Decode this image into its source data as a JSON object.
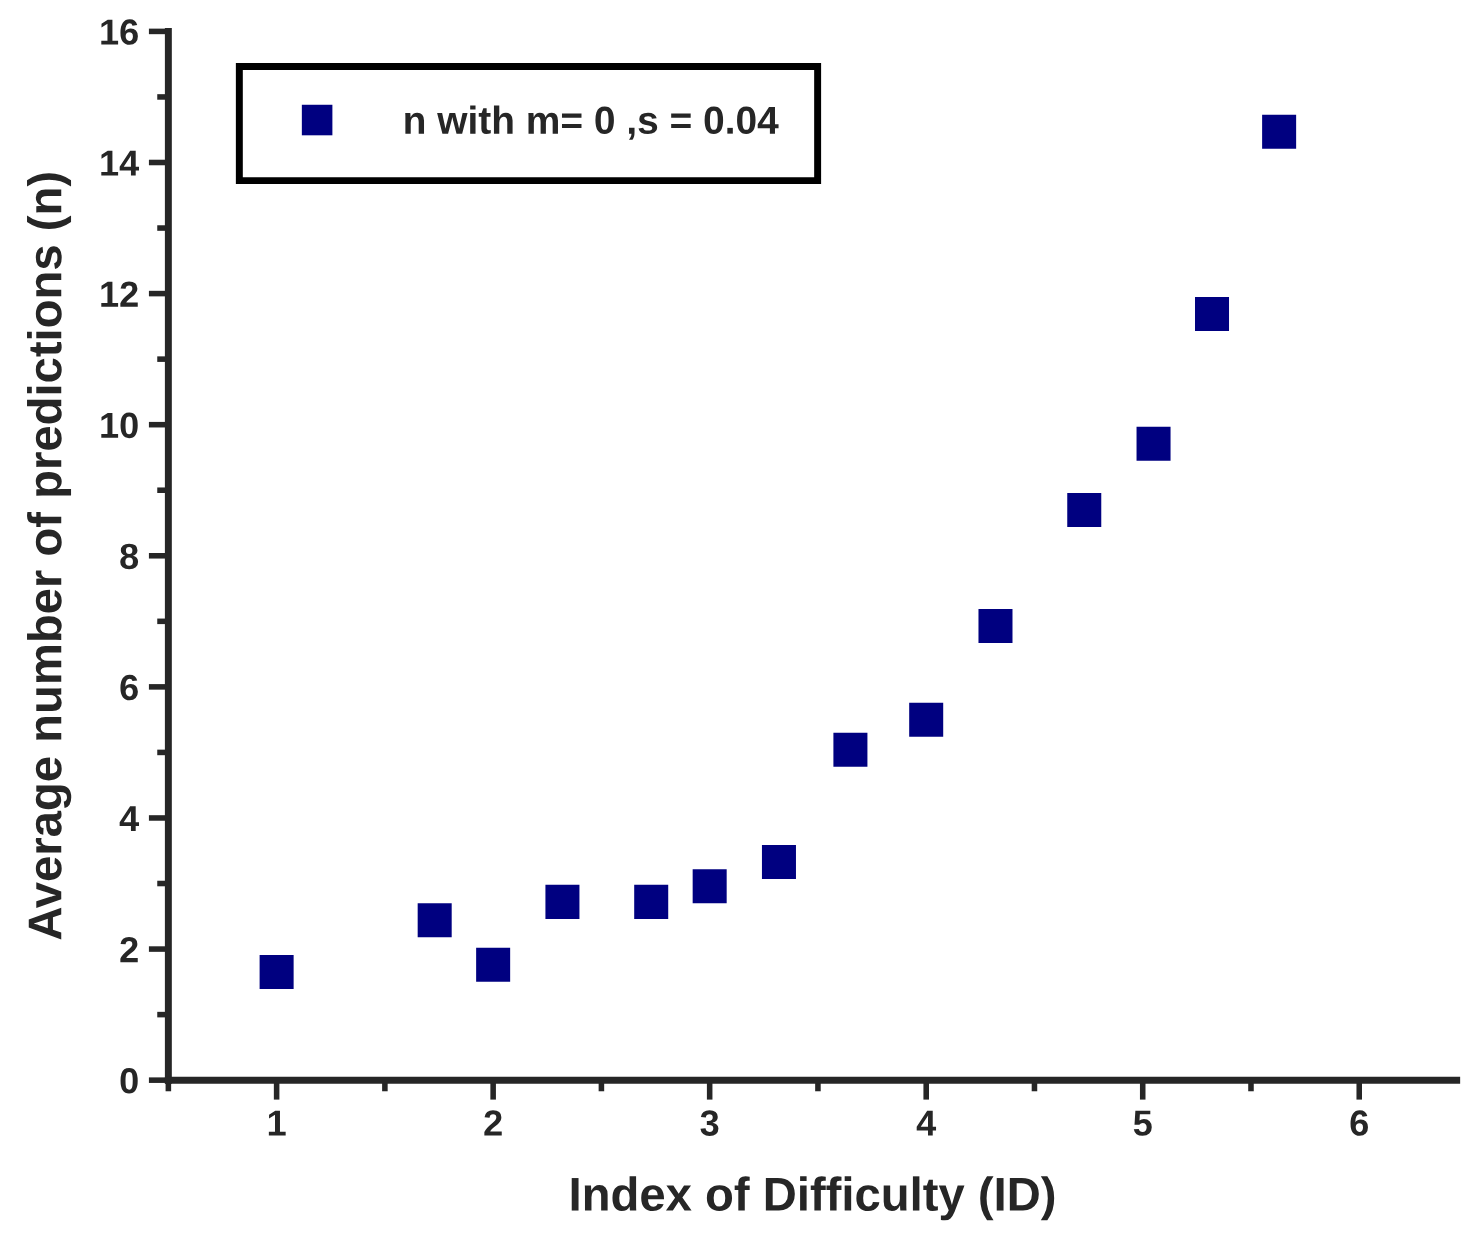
{
  "chart_data": {
    "type": "scatter",
    "xlabel": "Index of Difficulty (ID)",
    "ylabel": "Average number of predictions (n)",
    "x": [
      1.0,
      1.73,
      2.0,
      2.32,
      2.73,
      3.0,
      3.32,
      3.65,
      4.0,
      4.32,
      4.73,
      5.05,
      5.32,
      5.63
    ],
    "series": [
      {
        "name": "n with m= 0 ,s = 0.04",
        "color": "#000080",
        "values": [
          1.65,
          2.44,
          1.76,
          2.72,
          2.72,
          2.96,
          3.33,
          5.04,
          5.5,
          6.93,
          8.7,
          9.71,
          11.69,
          14.47
        ]
      }
    ],
    "xlim": [
      0.5,
      6.45
    ],
    "ylim": [
      0,
      16
    ],
    "xticks": [
      1,
      2,
      3,
      4,
      5,
      6
    ],
    "yticks": [
      0,
      2,
      4,
      6,
      8,
      10,
      12,
      14,
      16
    ],
    "marker": "square",
    "legend": "top left",
    "grid": false
  }
}
